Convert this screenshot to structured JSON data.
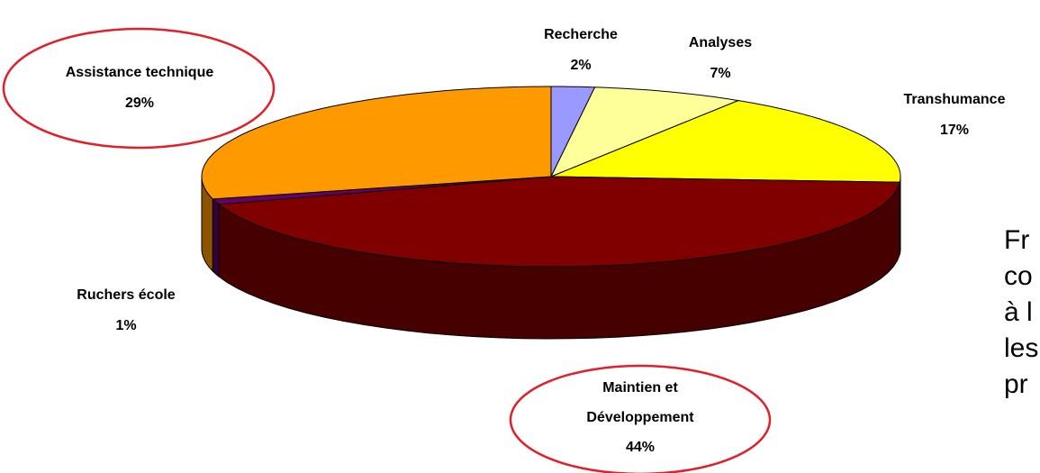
{
  "chart_data": {
    "type": "pie3d",
    "categories": [
      "Recherche",
      "Analyses",
      "Transhumance",
      "Maintien et Développement",
      "Ruchers école",
      "Assistance technique"
    ],
    "values": [
      2,
      7,
      17,
      44,
      1,
      29
    ],
    "value_labels": [
      "2%",
      "7%",
      "17%",
      "44%",
      "1%",
      "29%"
    ],
    "colors": [
      "#9999ff",
      "#ffff99",
      "#ffff00",
      "#800000",
      "#660066",
      "#ff9900"
    ],
    "side_text": [
      "Fr",
      "co",
      "à l",
      "les",
      "pr"
    ]
  }
}
